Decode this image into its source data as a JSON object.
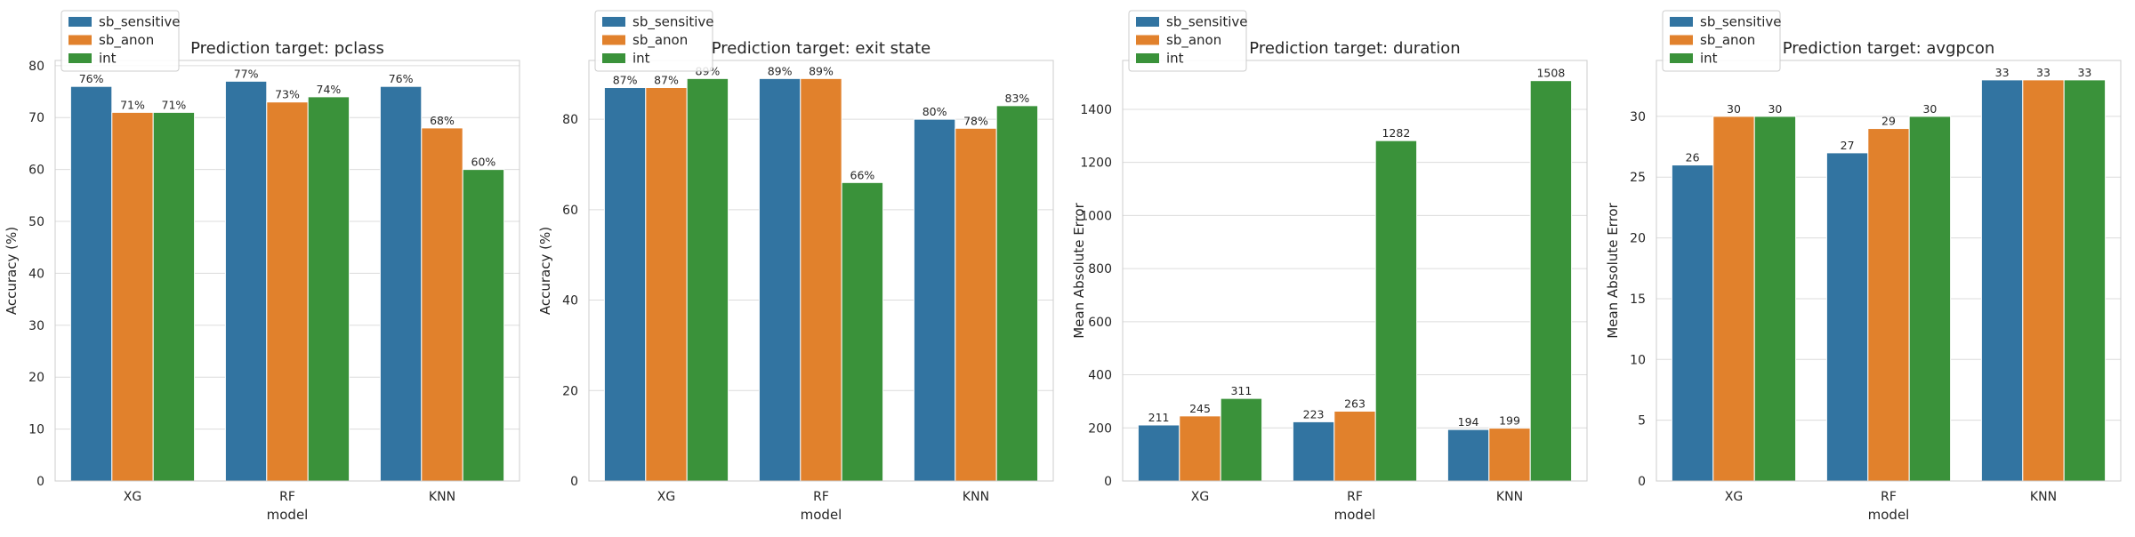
{
  "chart_data": [
    {
      "type": "bar",
      "title": "Prediction target: pclass",
      "xlabel": "model",
      "ylabel": "Accuracy (%)",
      "categories": [
        "XG",
        "RF",
        "KNN"
      ],
      "ylim": [
        0,
        81
      ],
      "yticks": [
        0,
        10,
        20,
        30,
        40,
        50,
        60,
        70,
        80
      ],
      "label_suffix": "%",
      "grid": true,
      "legend": "top-left",
      "series": [
        {
          "name": "sb_sensitive",
          "values": [
            76,
            77,
            76
          ],
          "color": "#3274a1"
        },
        {
          "name": "sb_anon",
          "values": [
            71,
            73,
            68
          ],
          "color": "#e1812c"
        },
        {
          "name": "int",
          "values": [
            71,
            74,
            60
          ],
          "color": "#3a923a"
        }
      ]
    },
    {
      "type": "bar",
      "title": "Prediction target: exit state",
      "xlabel": "model",
      "ylabel": "Accuracy (%)",
      "categories": [
        "XG",
        "RF",
        "KNN"
      ],
      "ylim": [
        0,
        93
      ],
      "yticks": [
        0,
        20,
        40,
        60,
        80
      ],
      "label_suffix": "%",
      "grid": true,
      "legend": "top-left",
      "series": [
        {
          "name": "sb_sensitive",
          "values": [
            87,
            89,
            80
          ],
          "color": "#3274a1"
        },
        {
          "name": "sb_anon",
          "values": [
            87,
            89,
            78
          ],
          "color": "#e1812c"
        },
        {
          "name": "int",
          "values": [
            89,
            66,
            83
          ],
          "color": "#3a923a"
        }
      ]
    },
    {
      "type": "bar",
      "title": "Prediction target: duration",
      "xlabel": "model",
      "ylabel": "Mean Absolute Error",
      "categories": [
        "XG",
        "RF",
        "KNN"
      ],
      "ylim": [
        0,
        1584
      ],
      "yticks": [
        0,
        200,
        400,
        600,
        800,
        1000,
        1200,
        1400
      ],
      "label_suffix": "",
      "grid": true,
      "legend": "top-left",
      "series": [
        {
          "name": "sb_sensitive",
          "values": [
            211,
            223,
            194
          ],
          "color": "#3274a1"
        },
        {
          "name": "sb_anon",
          "values": [
            245,
            263,
            199
          ],
          "color": "#e1812c"
        },
        {
          "name": "int",
          "values": [
            311,
            1282,
            1508
          ],
          "color": "#3a923a"
        }
      ]
    },
    {
      "type": "bar",
      "title": "Prediction target: avgpcon",
      "xlabel": "model",
      "ylabel": "Mean Absolute Error",
      "categories": [
        "XG",
        "RF",
        "KNN"
      ],
      "ylim": [
        0,
        34.6
      ],
      "yticks": [
        0,
        5,
        10,
        15,
        20,
        25,
        30
      ],
      "label_suffix": "",
      "grid": true,
      "legend": "top-left",
      "series": [
        {
          "name": "sb_sensitive",
          "values": [
            26,
            27,
            33
          ],
          "color": "#3274a1"
        },
        {
          "name": "sb_anon",
          "values": [
            30,
            29,
            33
          ],
          "color": "#e1812c"
        },
        {
          "name": "int",
          "values": [
            30,
            30,
            33
          ],
          "color": "#3a923a"
        }
      ]
    }
  ]
}
